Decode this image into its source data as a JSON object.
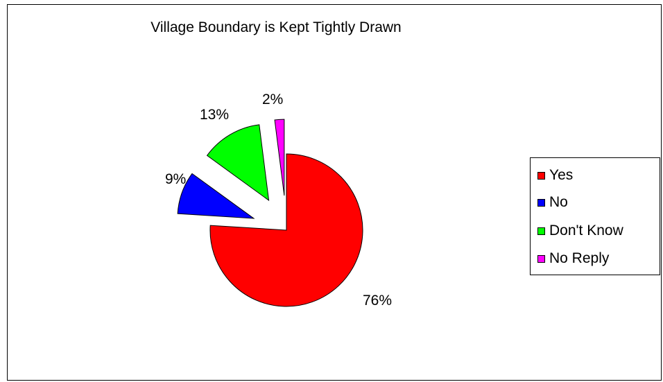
{
  "chart_data": {
    "type": "pie",
    "title": "Village Boundary is Kept Tightly Drawn",
    "categories": [
      "Yes",
      "No",
      "Don't Know",
      "No Reply"
    ],
    "values": [
      76,
      9,
      13,
      2
    ],
    "labels": [
      "76%",
      "9%",
      "13%",
      "2%"
    ],
    "colors": [
      "#ff0000",
      "#0000ff",
      "#00ff00",
      "#ff00ff"
    ],
    "exploded": [
      false,
      true,
      true,
      true
    ],
    "legend": "right"
  }
}
